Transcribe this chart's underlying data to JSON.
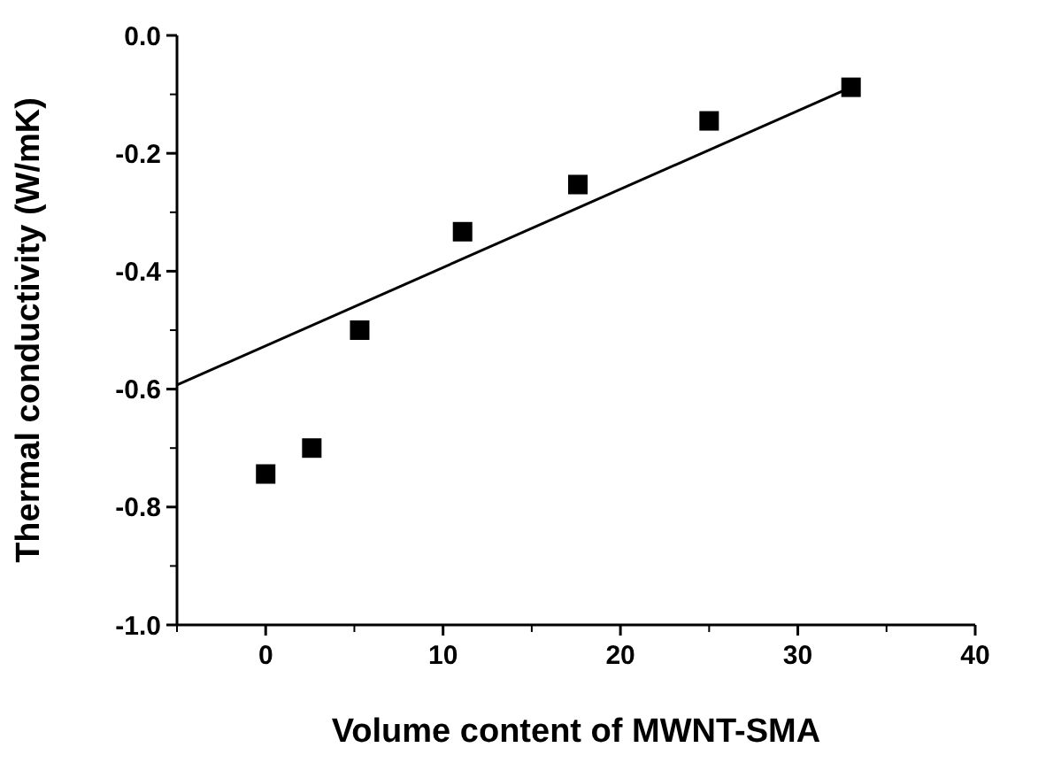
{
  "chart_data": {
    "type": "scatter",
    "xlabel": "Volume content of MWNT-SMA",
    "ylabel": "Thermal conductivity (W/mK)",
    "xlim": [
      -5,
      40
    ],
    "xticks": [
      0,
      10,
      20,
      30,
      40
    ],
    "ylim": [
      -1.0,
      0.0
    ],
    "yticks": [
      {
        "value": -1.0,
        "label": "-1.0"
      },
      {
        "value": -0.8,
        "label": "-0.8"
      },
      {
        "value": -0.6,
        "label": "-0.6"
      },
      {
        "value": -0.4,
        "label": "-0.4"
      },
      {
        "value": -0.2,
        "label": "-0.2"
      },
      {
        "value": 0,
        "label": "0.0"
      }
    ],
    "grid": false,
    "series": [
      {
        "color": "#000000",
        "marker": "square",
        "x": [
          0,
          2.6,
          5.3,
          11.1,
          17.6,
          25.0,
          33.0
        ],
        "values": [
          -0.744,
          -0.7,
          -0.5,
          -0.333,
          -0.253,
          -0.145,
          -0.088
        ]
      },
      {
        "type": "line",
        "color": "#000000",
        "marker": "none",
        "line_style": "solid",
        "x": [
          -5,
          33
        ],
        "values": [
          -0.593,
          -0.088
        ]
      }
    ]
  }
}
